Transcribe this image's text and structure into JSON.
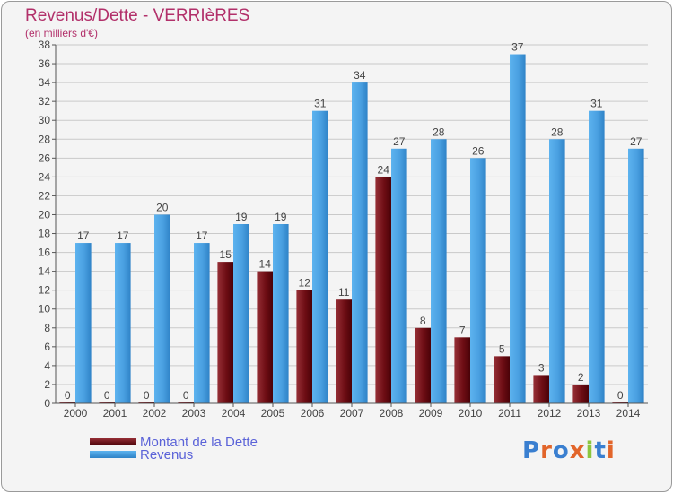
{
  "title": "Revenus/Dette - VERRIèRES",
  "subtitle": "(en milliers d'€)",
  "legend": [
    {
      "label": "Montant de la Dette",
      "color": "#6e0d14"
    },
    {
      "label": "Revenus",
      "color": "#4da3e3"
    }
  ],
  "logo": {
    "letters": [
      {
        "ch": "P",
        "color": "#3a7fd0"
      },
      {
        "ch": "r",
        "color": "#e2652a"
      },
      {
        "ch": "o",
        "color": "#3a7fd0"
      },
      {
        "ch": "x",
        "color": "#e2652a"
      },
      {
        "ch": "i",
        "color": "#8cc63e"
      },
      {
        "ch": "t",
        "color": "#3a7fd0"
      },
      {
        "ch": "i",
        "color": "#e2652a"
      }
    ]
  },
  "chart_data": {
    "type": "bar",
    "title": "Revenus/Dette - VERRIèRES",
    "subtitle": "(en milliers d'€)",
    "categories": [
      "2000",
      "2001",
      "2002",
      "2003",
      "2004",
      "2005",
      "2006",
      "2007",
      "2008",
      "2009",
      "2010",
      "2011",
      "2012",
      "2013",
      "2014"
    ],
    "series": [
      {
        "name": "Montant de la Dette",
        "color": "#6e0d14",
        "values": [
          0,
          0,
          0,
          0,
          15,
          14,
          12,
          11,
          24,
          8,
          7,
          5,
          3,
          2,
          0
        ]
      },
      {
        "name": "Revenus",
        "color": "#4da3e3",
        "values": [
          17,
          17,
          20,
          17,
          19,
          19,
          31,
          34,
          27,
          28,
          26,
          37,
          28,
          31,
          27
        ]
      }
    ],
    "ylim": [
      0,
      38
    ],
    "yticks": [
      0,
      2,
      4,
      6,
      8,
      10,
      12,
      14,
      16,
      18,
      20,
      22,
      24,
      26,
      28,
      30,
      32,
      34,
      36,
      38
    ],
    "grid": true,
    "data_labels": true,
    "legend_position": "bottom-left"
  }
}
